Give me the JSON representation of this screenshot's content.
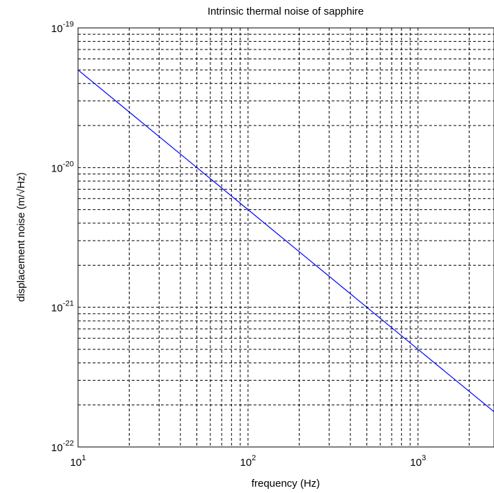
{
  "chart_data": {
    "type": "line",
    "title": "Intrinsic thermal noise of sapphire",
    "xlabel": "frequency (Hz)",
    "ylabel": "displacement noise (m/√Hz)",
    "x_scale": "log",
    "y_scale": "log",
    "xlim": [
      10,
      2800
    ],
    "ylim": [
      1e-22,
      1e-19
    ],
    "grid": true,
    "x_ticks": [
      {
        "base": "10",
        "exp": "1",
        "value": 10
      },
      {
        "base": "10",
        "exp": "2",
        "value": 100
      },
      {
        "base": "10",
        "exp": "3",
        "value": 1000
      }
    ],
    "y_ticks": [
      {
        "base": "10",
        "exp": "-22",
        "value": 1e-22
      },
      {
        "base": "10",
        "exp": "-21",
        "value": 1e-21
      },
      {
        "base": "10",
        "exp": "-20",
        "value": 1e-20
      },
      {
        "base": "10",
        "exp": "-19",
        "value": 1e-19
      }
    ],
    "series": [
      {
        "color": "#0000ff",
        "x": [
          10,
          20,
          50,
          100,
          200,
          500,
          1000,
          2800
        ],
        "y": [
          5e-20,
          2.5e-20,
          1e-20,
          5e-21,
          2.5e-21,
          1e-21,
          5e-22,
          1.79e-22
        ]
      }
    ]
  }
}
